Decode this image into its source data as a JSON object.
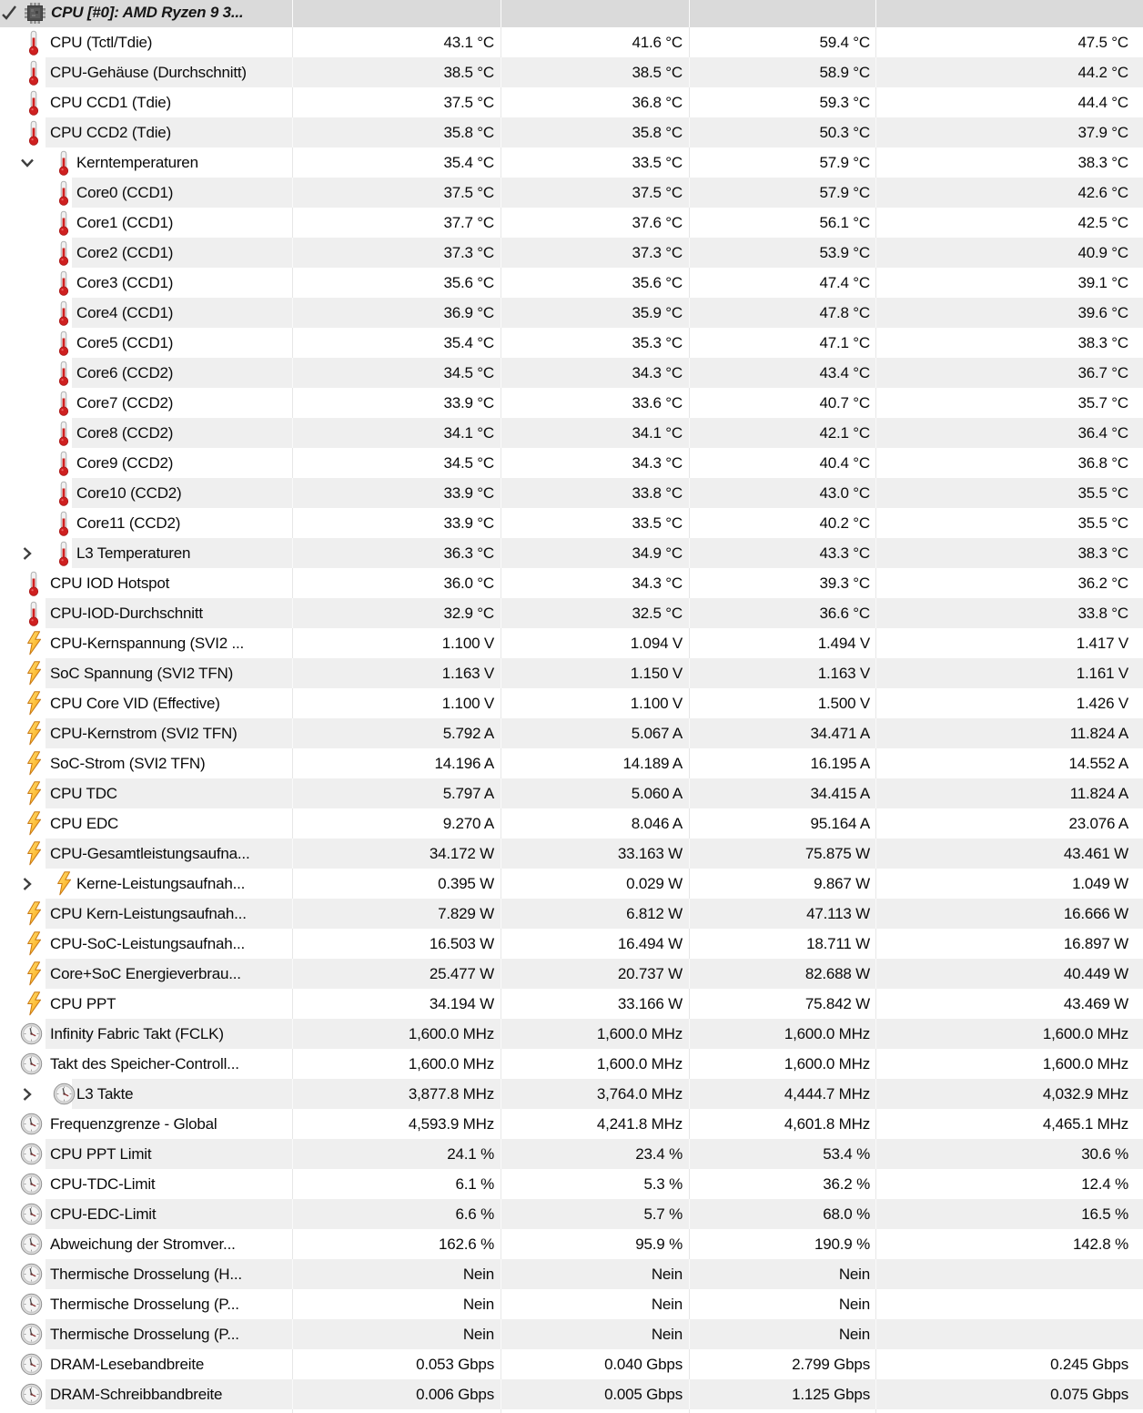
{
  "header": {
    "title": "CPU [#0]: AMD Ryzen 9 3...",
    "icon": "cpu-chip-icon",
    "expander_icon": "check-expand-icon"
  },
  "rows": [
    {
      "label": "CPU (Tctl/Tdie)",
      "icon": "thermometer-icon",
      "level": 0,
      "values": [
        "43.1 °C",
        "41.6 °C",
        "59.4 °C",
        "47.5 °C"
      ]
    },
    {
      "label": "CPU-Gehäuse (Durchschnitt)",
      "icon": "thermometer-icon",
      "level": 0,
      "values": [
        "38.5 °C",
        "38.5 °C",
        "58.9 °C",
        "44.2 °C"
      ]
    },
    {
      "label": "CPU CCD1 (Tdie)",
      "icon": "thermometer-icon",
      "level": 0,
      "values": [
        "37.5 °C",
        "36.8 °C",
        "59.3 °C",
        "44.4 °C"
      ]
    },
    {
      "label": "CPU CCD2 (Tdie)",
      "icon": "thermometer-icon",
      "level": 0,
      "values": [
        "35.8 °C",
        "35.8 °C",
        "50.3 °C",
        "37.9 °C"
      ]
    },
    {
      "label": "Kerntemperaturen",
      "icon": "thermometer-icon",
      "level": 1,
      "chevron": "down",
      "values": [
        "35.4 °C",
        "33.5 °C",
        "57.9 °C",
        "38.3 °C"
      ]
    },
    {
      "label": "Core0 (CCD1)",
      "icon": "thermometer-icon",
      "level": 1,
      "values": [
        "37.5 °C",
        "37.5 °C",
        "57.9 °C",
        "42.6 °C"
      ]
    },
    {
      "label": "Core1 (CCD1)",
      "icon": "thermometer-icon",
      "level": 1,
      "values": [
        "37.7 °C",
        "37.6 °C",
        "56.1 °C",
        "42.5 °C"
      ]
    },
    {
      "label": "Core2 (CCD1)",
      "icon": "thermometer-icon",
      "level": 1,
      "values": [
        "37.3 °C",
        "37.3 °C",
        "53.9 °C",
        "40.9 °C"
      ]
    },
    {
      "label": "Core3 (CCD1)",
      "icon": "thermometer-icon",
      "level": 1,
      "values": [
        "35.6 °C",
        "35.6 °C",
        "47.4 °C",
        "39.1 °C"
      ]
    },
    {
      "label": "Core4 (CCD1)",
      "icon": "thermometer-icon",
      "level": 1,
      "values": [
        "36.9 °C",
        "35.9 °C",
        "47.8 °C",
        "39.6 °C"
      ]
    },
    {
      "label": "Core5 (CCD1)",
      "icon": "thermometer-icon",
      "level": 1,
      "values": [
        "35.4 °C",
        "35.3 °C",
        "47.1 °C",
        "38.3 °C"
      ]
    },
    {
      "label": "Core6 (CCD2)",
      "icon": "thermometer-icon",
      "level": 1,
      "values": [
        "34.5 °C",
        "34.3 °C",
        "43.4 °C",
        "36.7 °C"
      ]
    },
    {
      "label": "Core7 (CCD2)",
      "icon": "thermometer-icon",
      "level": 1,
      "values": [
        "33.9 °C",
        "33.6 °C",
        "40.7 °C",
        "35.7 °C"
      ]
    },
    {
      "label": "Core8 (CCD2)",
      "icon": "thermometer-icon",
      "level": 1,
      "values": [
        "34.1 °C",
        "34.1 °C",
        "42.1 °C",
        "36.4 °C"
      ]
    },
    {
      "label": "Core9 (CCD2)",
      "icon": "thermometer-icon",
      "level": 1,
      "values": [
        "34.5 °C",
        "34.3 °C",
        "40.4 °C",
        "36.8 °C"
      ]
    },
    {
      "label": "Core10 (CCD2)",
      "icon": "thermometer-icon",
      "level": 1,
      "values": [
        "33.9 °C",
        "33.8 °C",
        "43.0 °C",
        "35.5 °C"
      ]
    },
    {
      "label": "Core11 (CCD2)",
      "icon": "thermometer-icon",
      "level": 1,
      "values": [
        "33.9 °C",
        "33.5 °C",
        "40.2 °C",
        "35.5 °C"
      ]
    },
    {
      "label": "L3 Temperaturen",
      "icon": "thermometer-icon",
      "level": 1,
      "chevron": "right",
      "values": [
        "36.3 °C",
        "34.9 °C",
        "43.3 °C",
        "38.3 °C"
      ]
    },
    {
      "label": "CPU IOD Hotspot",
      "icon": "thermometer-icon",
      "level": 0,
      "values": [
        "36.0 °C",
        "34.3 °C",
        "39.3 °C",
        "36.2 °C"
      ]
    },
    {
      "label": "CPU-IOD-Durchschnitt",
      "icon": "thermometer-icon",
      "level": 0,
      "values": [
        "32.9 °C",
        "32.5 °C",
        "36.6 °C",
        "33.8 °C"
      ]
    },
    {
      "label": "CPU-Kernspannung (SVI2 ...",
      "icon": "lightning-icon",
      "level": 0,
      "values": [
        "1.100 V",
        "1.094 V",
        "1.494 V",
        "1.417 V"
      ]
    },
    {
      "label": "SoC Spannung (SVI2 TFN)",
      "icon": "lightning-icon",
      "level": 0,
      "values": [
        "1.163 V",
        "1.150 V",
        "1.163 V",
        "1.161 V"
      ]
    },
    {
      "label": "CPU Core VID (Effective)",
      "icon": "lightning-icon",
      "level": 0,
      "values": [
        "1.100 V",
        "1.100 V",
        "1.500 V",
        "1.426 V"
      ]
    },
    {
      "label": "CPU-Kernstrom (SVI2 TFN)",
      "icon": "lightning-icon",
      "level": 0,
      "values": [
        "5.792 A",
        "5.067 A",
        "34.471 A",
        "11.824 A"
      ]
    },
    {
      "label": "SoC-Strom (SVI2 TFN)",
      "icon": "lightning-icon",
      "level": 0,
      "values": [
        "14.196 A",
        "14.189 A",
        "16.195 A",
        "14.552 A"
      ]
    },
    {
      "label": "CPU TDC",
      "icon": "lightning-icon",
      "level": 0,
      "values": [
        "5.797 A",
        "5.060 A",
        "34.415 A",
        "11.824 A"
      ]
    },
    {
      "label": "CPU EDC",
      "icon": "lightning-icon",
      "level": 0,
      "values": [
        "9.270 A",
        "8.046 A",
        "95.164 A",
        "23.076 A"
      ]
    },
    {
      "label": "CPU-Gesamtleistungsaufna...",
      "icon": "lightning-icon",
      "level": 0,
      "values": [
        "34.172 W",
        "33.163 W",
        "75.875 W",
        "43.461 W"
      ]
    },
    {
      "label": "Kerne-Leistungsaufnah...",
      "icon": "lightning-icon",
      "level": 1,
      "chevron": "right",
      "values": [
        "0.395 W",
        "0.029 W",
        "9.867 W",
        "1.049 W"
      ]
    },
    {
      "label": "CPU Kern-Leistungsaufnah...",
      "icon": "lightning-icon",
      "level": 0,
      "values": [
        "7.829 W",
        "6.812 W",
        "47.113 W",
        "16.666 W"
      ]
    },
    {
      "label": "CPU-SoC-Leistungsaufnah...",
      "icon": "lightning-icon",
      "level": 0,
      "values": [
        "16.503 W",
        "16.494 W",
        "18.711 W",
        "16.897 W"
      ]
    },
    {
      "label": "Core+SoC Energieverbrau...",
      "icon": "lightning-icon",
      "level": 0,
      "values": [
        "25.477 W",
        "20.737 W",
        "82.688 W",
        "40.449 W"
      ]
    },
    {
      "label": "CPU PPT",
      "icon": "lightning-icon",
      "level": 0,
      "values": [
        "34.194 W",
        "33.166 W",
        "75.842 W",
        "43.469 W"
      ]
    },
    {
      "label": "Infinity Fabric Takt (FCLK)",
      "icon": "clock-icon",
      "level": 0,
      "values": [
        "1,600.0 MHz",
        "1,600.0 MHz",
        "1,600.0 MHz",
        "1,600.0 MHz"
      ]
    },
    {
      "label": "Takt des Speicher-Controll...",
      "icon": "clock-icon",
      "level": 0,
      "values": [
        "1,600.0 MHz",
        "1,600.0 MHz",
        "1,600.0 MHz",
        "1,600.0 MHz"
      ]
    },
    {
      "label": "L3 Takte",
      "icon": "clock-icon",
      "level": 1,
      "chevron": "right",
      "values": [
        "3,877.8 MHz",
        "3,764.0 MHz",
        "4,444.7 MHz",
        "4,032.9 MHz"
      ]
    },
    {
      "label": "Frequenzgrenze - Global",
      "icon": "clock-icon",
      "level": 0,
      "values": [
        "4,593.9 MHz",
        "4,241.8 MHz",
        "4,601.8 MHz",
        "4,465.1 MHz"
      ]
    },
    {
      "label": "CPU PPT Limit",
      "icon": "clock-icon",
      "level": 0,
      "values": [
        "24.1 %",
        "23.4 %",
        "53.4 %",
        "30.6 %"
      ]
    },
    {
      "label": "CPU-TDC-Limit",
      "icon": "clock-icon",
      "level": 0,
      "values": [
        "6.1 %",
        "5.3 %",
        "36.2 %",
        "12.4 %"
      ]
    },
    {
      "label": "CPU-EDC-Limit",
      "icon": "clock-icon",
      "level": 0,
      "values": [
        "6.6 %",
        "5.7 %",
        "68.0 %",
        "16.5 %"
      ]
    },
    {
      "label": "Abweichung der Stromver...",
      "icon": "clock-icon",
      "level": 0,
      "values": [
        "162.6 %",
        "95.9 %",
        "190.9 %",
        "142.8 %"
      ]
    },
    {
      "label": "Thermische Drosselung (H...",
      "icon": "clock-icon",
      "level": 0,
      "values": [
        "Nein",
        "Nein",
        "Nein",
        ""
      ]
    },
    {
      "label": "Thermische Drosselung (P...",
      "icon": "clock-icon",
      "level": 0,
      "values": [
        "Nein",
        "Nein",
        "Nein",
        ""
      ]
    },
    {
      "label": "Thermische Drosselung (P...",
      "icon": "clock-icon",
      "level": 0,
      "values": [
        "Nein",
        "Nein",
        "Nein",
        ""
      ]
    },
    {
      "label": "DRAM-Lesebandbreite",
      "icon": "clock-icon",
      "level": 0,
      "values": [
        "0.053 Gbps",
        "0.040 Gbps",
        "2.799 Gbps",
        "0.245 Gbps"
      ]
    },
    {
      "label": "DRAM-Schreibbandbreite",
      "icon": "clock-icon",
      "level": 0,
      "values": [
        "0.006 Gbps",
        "0.005 Gbps",
        "1.125 Gbps",
        "0.075 Gbps"
      ]
    },
    {
      "label": "",
      "icon": "clock-icon",
      "level": 0,
      "values": [
        "",
        "",
        "",
        ""
      ]
    }
  ],
  "colors": {
    "header_bg": "#dadada",
    "row_alt_bg": "#efefef",
    "row_bg": "#ffffff",
    "grid_line": "#e7e7e7",
    "text": "#0a0a0a",
    "thermometer_red": "#cf2020",
    "bolt_yellow": "#ffd24a",
    "bolt_orange": "#f59b1e"
  }
}
